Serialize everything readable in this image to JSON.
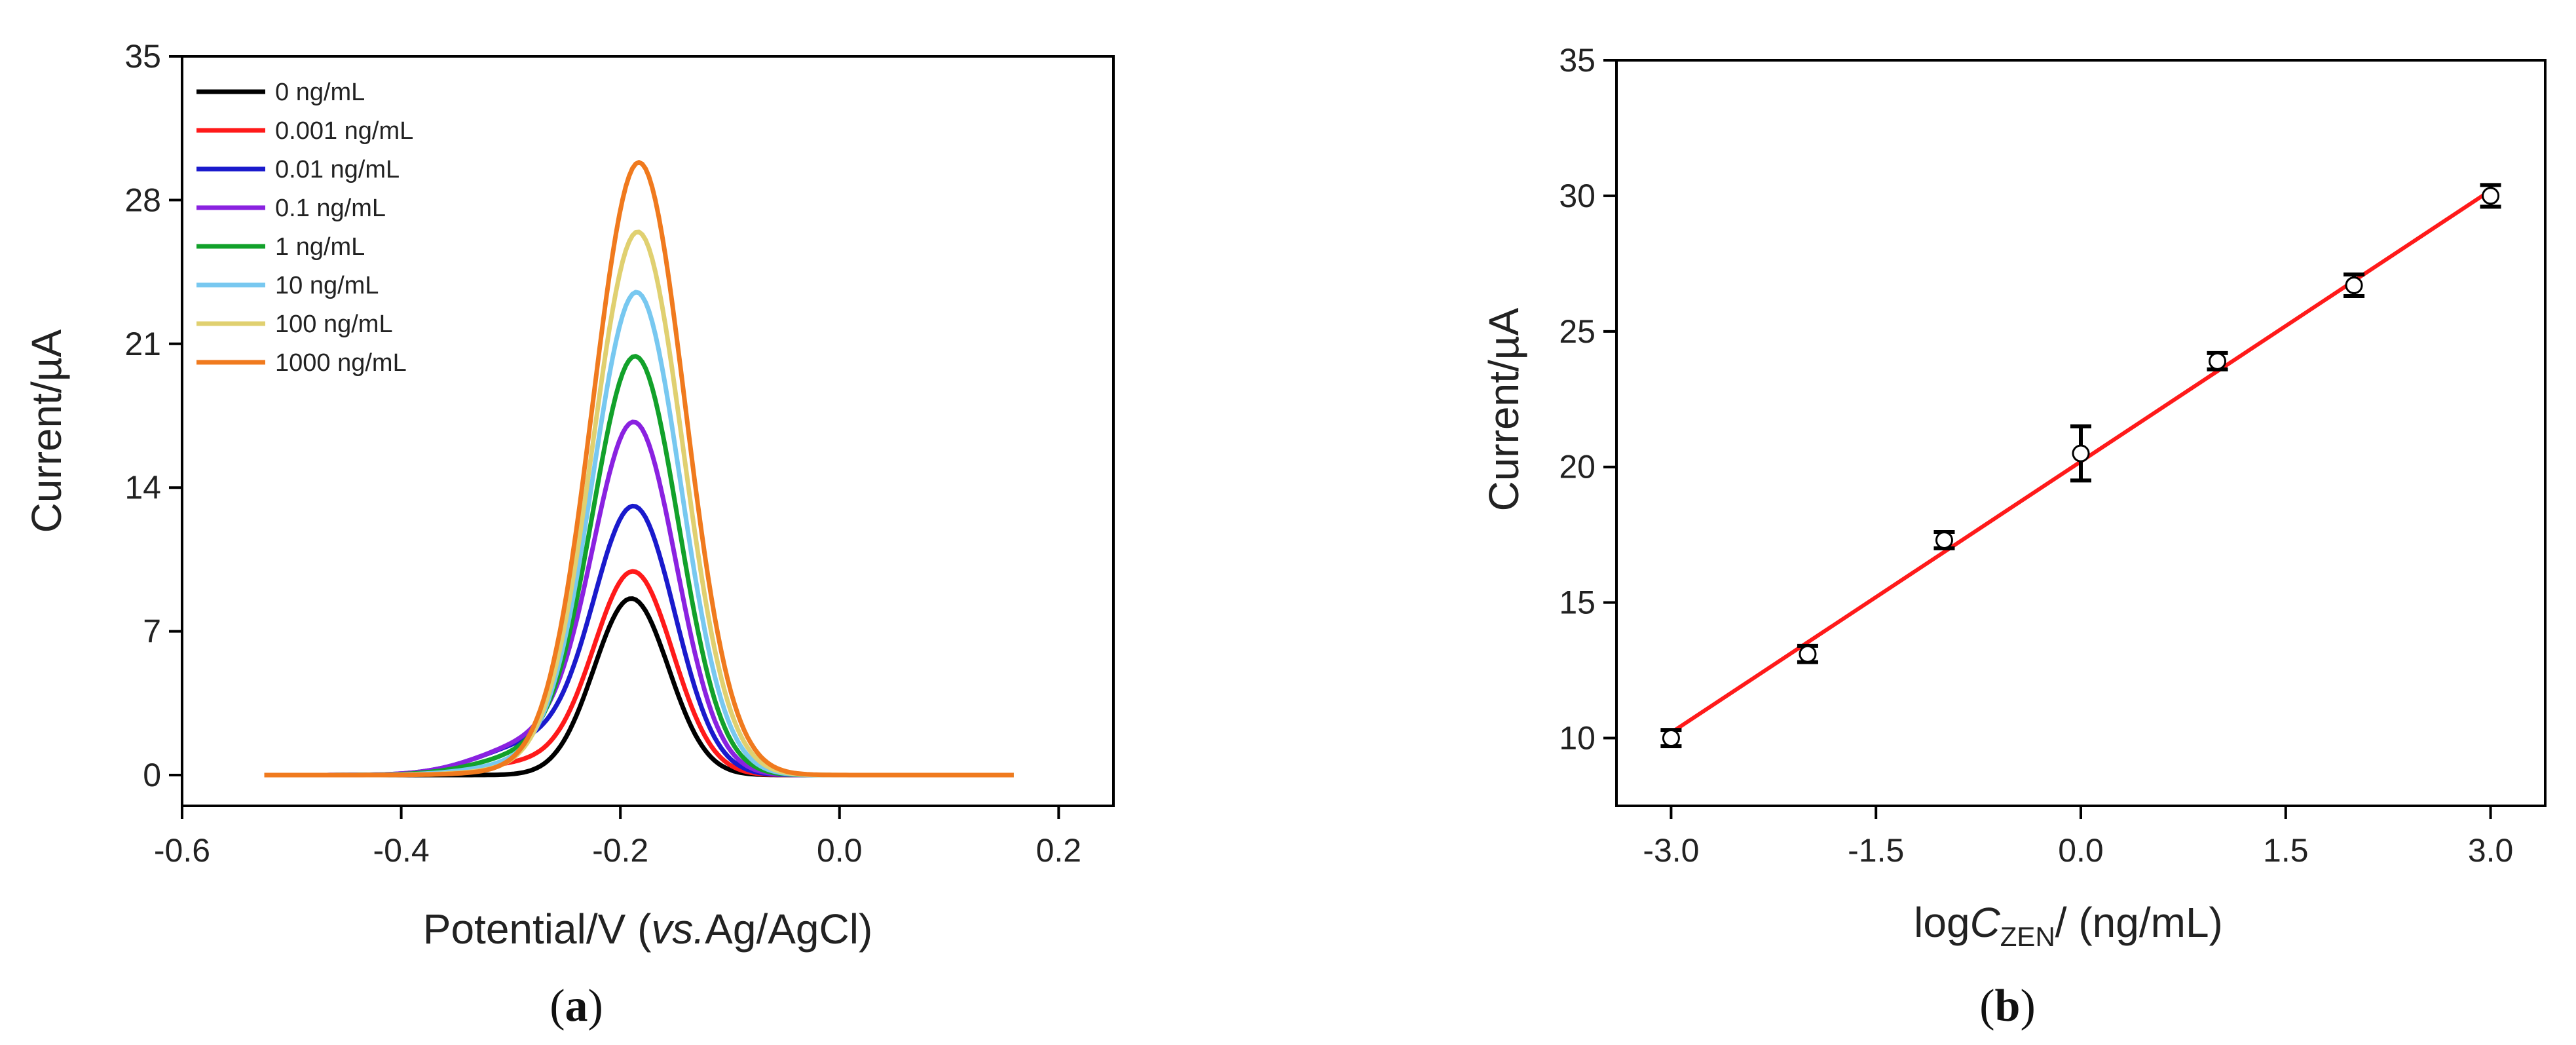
{
  "chart_data": [
    {
      "type": "line",
      "panel_label": "(a)",
      "panel_letter": "a",
      "xlabel_main": "Potential/V (",
      "xlabel_italic": "vs.",
      "xlabel_end": "Ag/AgCl)",
      "ylabel": "Current/µA",
      "xlim": [
        -0.6,
        0.25
      ],
      "ylim": [
        -1.5,
        35
      ],
      "x_ticks": [
        -0.6,
        -0.4,
        -0.2,
        0.0,
        0.2
      ],
      "x_tick_labels": [
        "-0.6",
        "-0.4",
        "-0.2",
        "0.0",
        "0.2"
      ],
      "y_ticks": [
        0,
        7,
        14,
        21,
        28,
        35
      ],
      "y_tick_labels": [
        "0",
        "7",
        "14",
        "21",
        "28",
        "35"
      ],
      "legend_position": "top-left",
      "x_range": [
        -0.525,
        0.16
      ],
      "series": [
        {
          "name": "0 ng/mL",
          "color": "#000000",
          "peak_x": -0.19,
          "peak_y": 8.6,
          "width": 0.034,
          "shoulder": 0.0
        },
        {
          "name": "0.001 ng/mL",
          "color": "#ff1a1a",
          "peak_x": -0.188,
          "peak_y": 9.8,
          "width": 0.036,
          "shoulder": 0.6
        },
        {
          "name": "0.01 ng/mL",
          "color": "#1a1acc",
          "peak_x": -0.187,
          "peak_y": 12.8,
          "width": 0.037,
          "shoulder": 1.5
        },
        {
          "name": "0.1 ng/mL",
          "color": "#8a22e0",
          "peak_x": -0.187,
          "peak_y": 16.9,
          "width": 0.038,
          "shoulder": 1.5
        },
        {
          "name": "1 ng/mL",
          "color": "#12a12a",
          "peak_x": -0.186,
          "peak_y": 20.2,
          "width": 0.039,
          "shoulder": 1.0
        },
        {
          "name": "10 ng/mL",
          "color": "#78c8f0",
          "peak_x": -0.185,
          "peak_y": 23.4,
          "width": 0.04,
          "shoulder": 0.6
        },
        {
          "name": "100 ng/mL",
          "color": "#e0d070",
          "peak_x": -0.184,
          "peak_y": 26.4,
          "width": 0.041,
          "shoulder": 0.3
        },
        {
          "name": "1000 ng/mL",
          "color": "#f07a1e",
          "peak_x": -0.183,
          "peak_y": 29.8,
          "width": 0.042,
          "shoulder": 0.2
        }
      ]
    },
    {
      "type": "scatter",
      "panel_label": "(b)",
      "panel_letter": "b",
      "xlabel_pre": "log",
      "xlabel_italic": "C",
      "xlabel_sub": "ZEN",
      "xlabel_post": "/ (ng/mL)",
      "ylabel": "Current/µA",
      "xlim": [
        -3.4,
        3.4
      ],
      "ylim": [
        7.5,
        35
      ],
      "x_ticks": [
        -3.0,
        -1.5,
        0.0,
        1.5,
        3.0
      ],
      "x_tick_labels": [
        "-3.0",
        "-1.5",
        "0.0",
        "1.5",
        "3.0"
      ],
      "y_ticks": [
        10,
        15,
        20,
        25,
        30,
        35
      ],
      "y_tick_labels": [
        "10",
        "15",
        "20",
        "25",
        "30",
        "35"
      ],
      "points": {
        "x": [
          -3,
          -2,
          -1,
          0,
          1,
          2,
          3
        ],
        "y": [
          10.0,
          13.1,
          17.3,
          20.5,
          23.9,
          26.7,
          30.0
        ],
        "error": [
          0.3,
          0.3,
          0.3,
          1.0,
          0.3,
          0.4,
          0.4
        ]
      },
      "fit_line": {
        "x": [
          -3,
          3
        ],
        "y": [
          10.2,
          30.2
        ],
        "color": "#ff1a1a"
      }
    }
  ]
}
